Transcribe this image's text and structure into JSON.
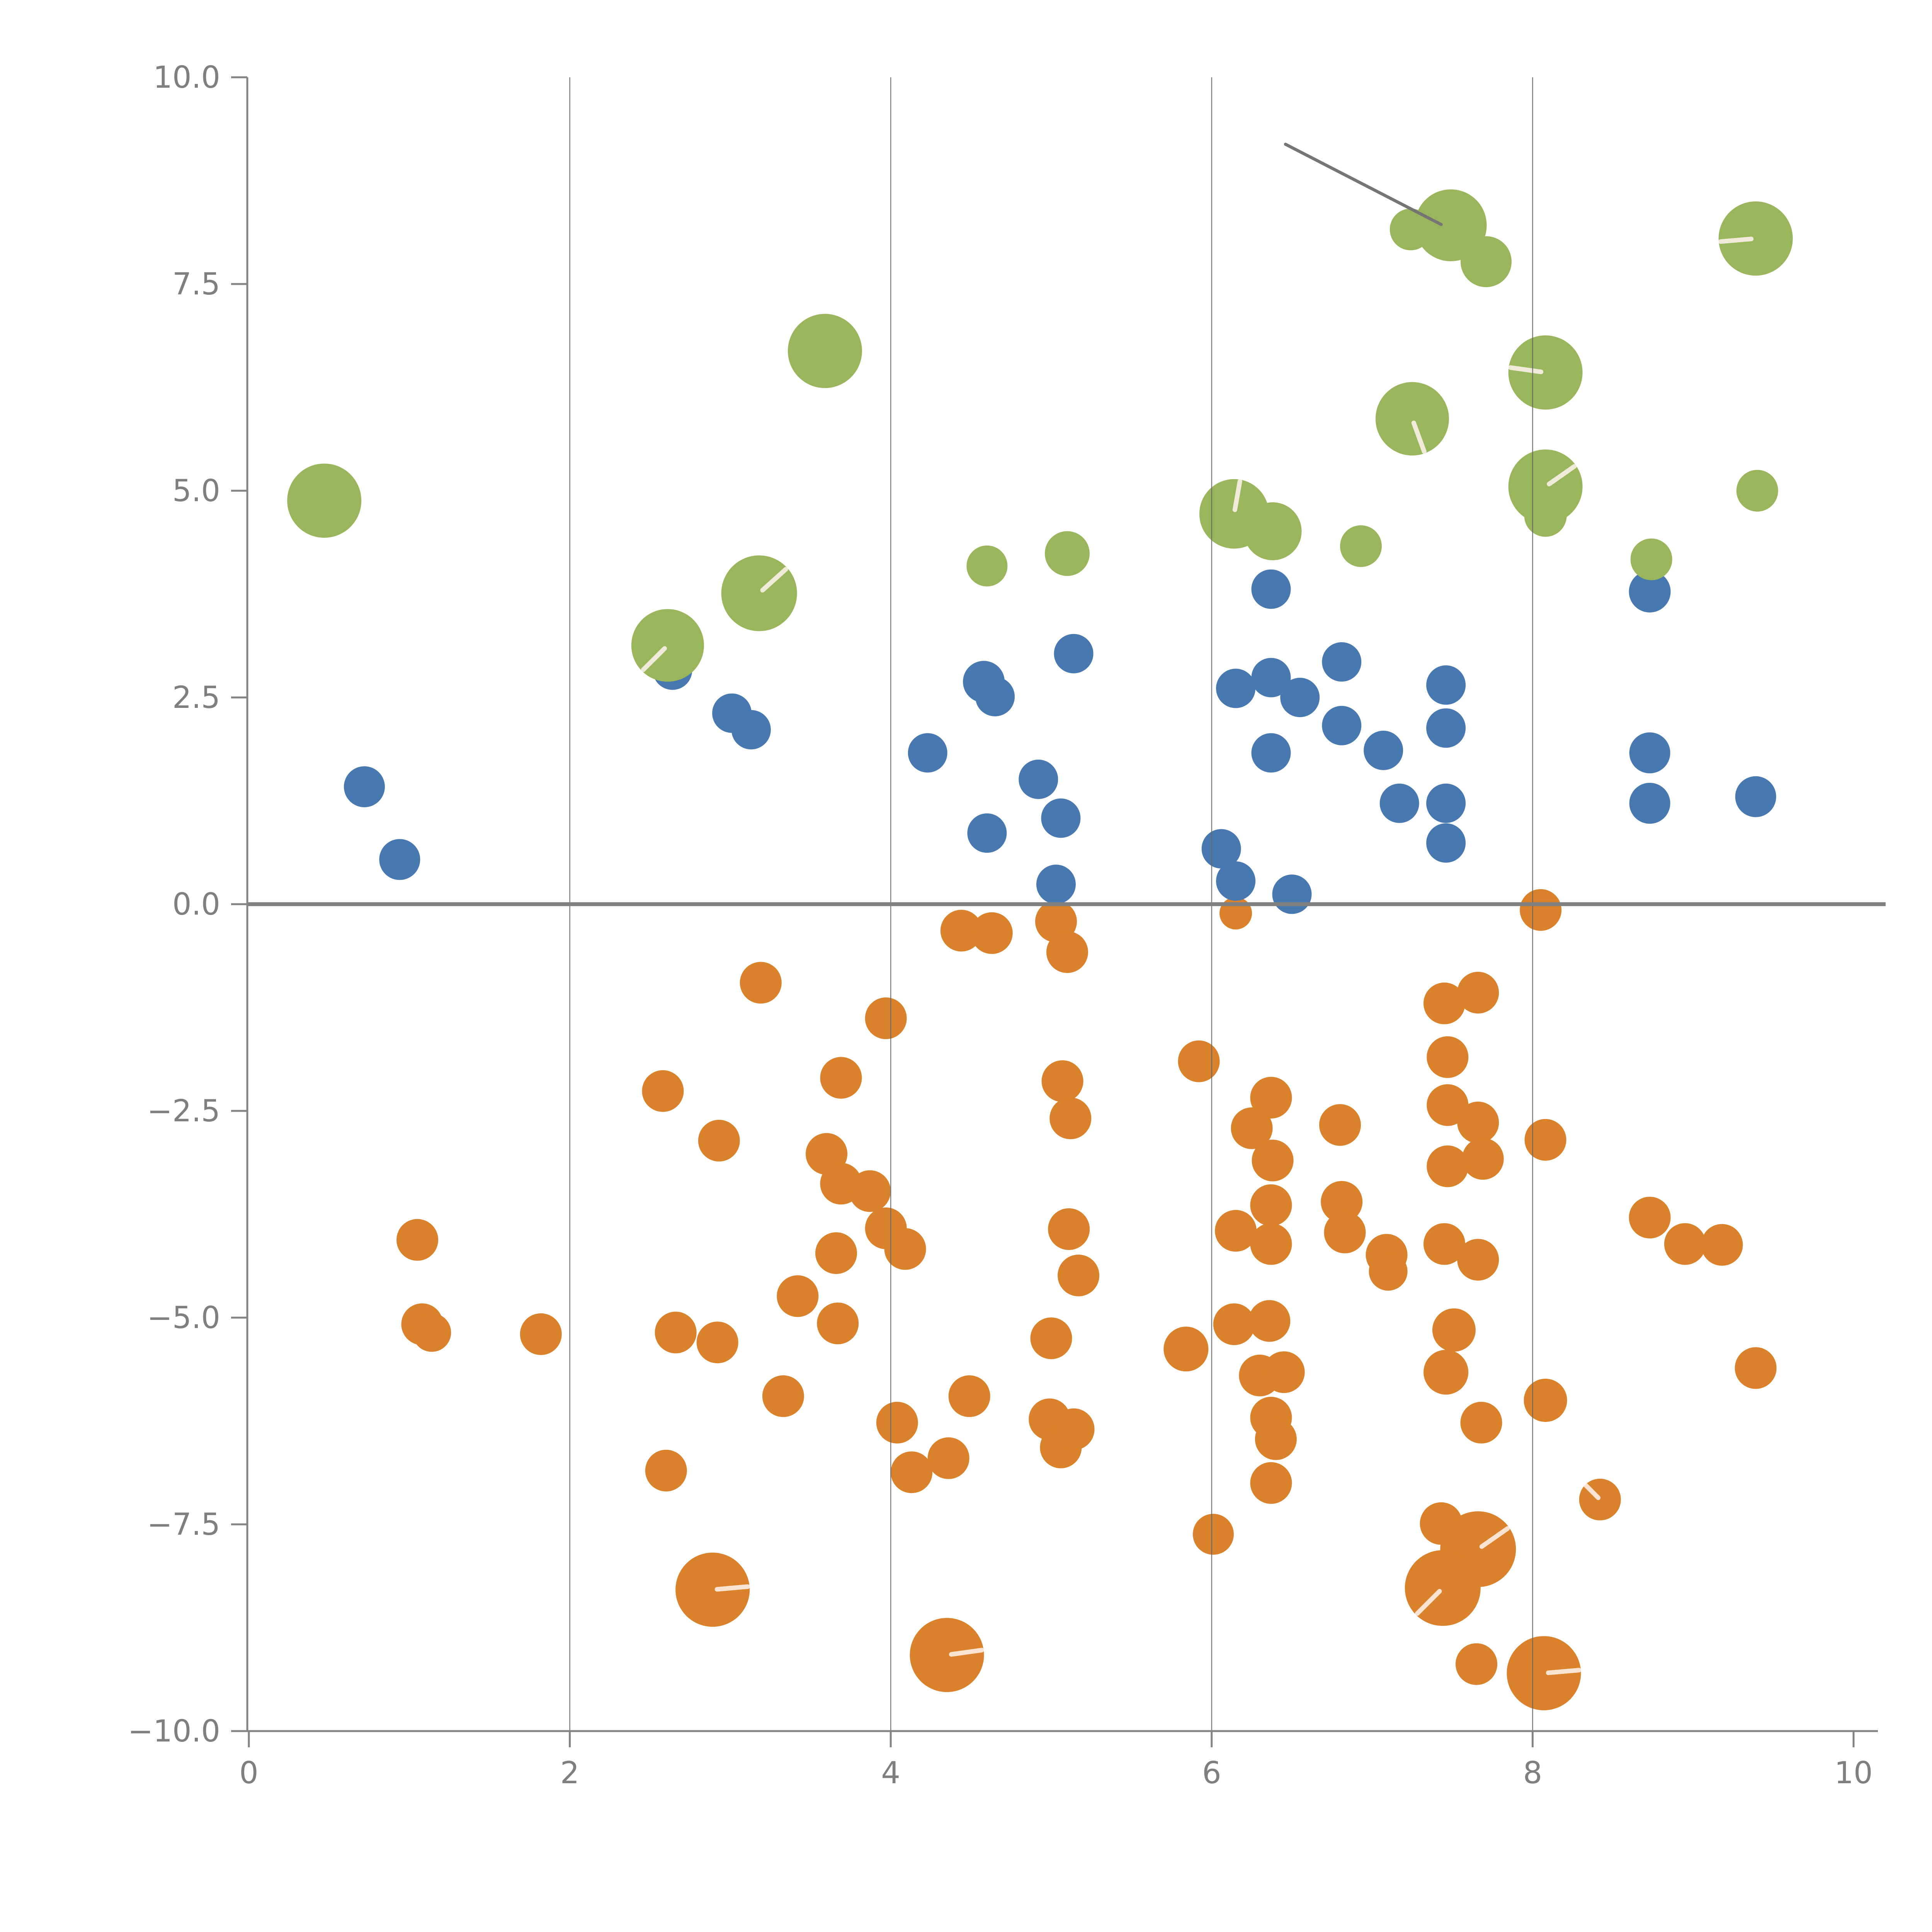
{
  "chart_data": {
    "type": "scatter",
    "subtype": "bubble",
    "title": "",
    "xlabel": "",
    "ylabel": "",
    "axes": {
      "xlim": [
        0,
        10
      ],
      "ylim": [
        -10,
        10
      ],
      "xticks": [
        {
          "v": 0,
          "label": "0"
        },
        {
          "v": 2,
          "label": "2"
        },
        {
          "v": 4,
          "label": "4"
        },
        {
          "v": 6,
          "label": "6"
        },
        {
          "v": 8,
          "label": "8"
        },
        {
          "v": 10,
          "label": "10"
        }
      ],
      "yticks": [
        {
          "v": 10,
          "label": "10.0"
        },
        {
          "v": 7.5,
          "label": "7.5"
        },
        {
          "v": 5,
          "label": "5.0"
        },
        {
          "v": 2.5,
          "label": "2.5"
        },
        {
          "v": 0,
          "label": "0.0"
        },
        {
          "v": -2.5,
          "label": "−2.5"
        },
        {
          "v": -5,
          "label": "−5.0"
        },
        {
          "v": -7.5,
          "label": "−7.5"
        },
        {
          "v": -10,
          "label": "−10.0"
        }
      ],
      "grid_x": [
        2,
        4,
        6,
        8
      ],
      "grid_y": [],
      "legend": "none"
    },
    "colors": {
      "green": "#9AB65C",
      "blue": "#4878B0",
      "orange": "#D9822B",
      "axis": "#848484",
      "tick_label": "#7F7F7F",
      "gridline": "#666666",
      "zero_line": "#808080",
      "annotation_line": "#757575",
      "bubble_slash": "rgba(255,245,238,0.85)"
    },
    "point_format": "[x, y, radius_px, optional_slash_angle_deg]",
    "series": [
      {
        "name": "orange",
        "points": [
          [
            1.05,
            -4.06,
            54
          ],
          [
            2.58,
            -2.26,
            54
          ],
          [
            3.19,
            -0.95,
            54
          ],
          [
            3.97,
            -1.38,
            54
          ],
          [
            3.69,
            -2.1,
            54
          ],
          [
            2.93,
            -2.86,
            54
          ],
          [
            3.6,
            -3.02,
            54
          ],
          [
            3.69,
            -3.38,
            54
          ],
          [
            3.87,
            -3.47,
            54
          ],
          [
            3.97,
            -3.92,
            54
          ],
          [
            4.09,
            -4.17,
            54
          ],
          [
            3.66,
            -4.22,
            54
          ],
          [
            4.44,
            -0.32,
            54
          ],
          [
            4.63,
            -0.35,
            54
          ],
          [
            5.03,
            -0.21,
            54
          ],
          [
            5.1,
            -0.58,
            54
          ],
          [
            5.07,
            -2.14,
            54
          ],
          [
            5.12,
            -2.59,
            54
          ],
          [
            5.11,
            -3.93,
            54
          ],
          [
            5.17,
            -4.49,
            54
          ],
          [
            3.42,
            -4.74,
            54
          ],
          [
            6.15,
            -0.11,
            42
          ],
          [
            5.92,
            -1.9,
            54
          ],
          [
            6.37,
            -2.34,
            54
          ],
          [
            6.25,
            -2.71,
            54
          ],
          [
            6.38,
            -3.1,
            54
          ],
          [
            6.37,
            -3.64,
            54
          ],
          [
            6.15,
            -3.95,
            54
          ],
          [
            6.37,
            -4.11,
            54
          ],
          [
            6.8,
            -2.67,
            54
          ],
          [
            6.81,
            -3.6,
            54
          ],
          [
            6.83,
            -3.97,
            54
          ],
          [
            7.09,
            -4.24,
            54
          ],
          [
            7.1,
            -4.44,
            50
          ],
          [
            7.45,
            -1.2,
            54
          ],
          [
            7.66,
            -1.07,
            54
          ],
          [
            7.47,
            -1.85,
            54
          ],
          [
            7.47,
            -2.43,
            54
          ],
          [
            7.66,
            -2.64,
            54
          ],
          [
            7.69,
            -3.08,
            54
          ],
          [
            7.47,
            -3.17,
            54
          ],
          [
            8.08,
            -2.85,
            54
          ],
          [
            8.73,
            -3.79,
            54
          ],
          [
            8.95,
            -4.11,
            54
          ],
          [
            9.18,
            -4.12,
            54
          ],
          [
            7.45,
            -4.11,
            54
          ],
          [
            7.66,
            -4.3,
            54
          ],
          [
            7.51,
            -5.15,
            56
          ],
          [
            7.46,
            -5.66,
            58
          ],
          [
            2.66,
            -5.18,
            54
          ],
          [
            2.92,
            -5.3,
            54
          ],
          [
            3.67,
            -5.07,
            54
          ],
          [
            1.08,
            -5.08,
            54
          ],
          [
            1.14,
            -5.18,
            50
          ],
          [
            1.82,
            -5.2,
            54
          ],
          [
            3.33,
            -5.95,
            54
          ],
          [
            2.6,
            -6.85,
            54
          ],
          [
            4.04,
            -6.27,
            54
          ],
          [
            4.13,
            -6.87,
            54
          ],
          [
            4.36,
            -6.7,
            54
          ],
          [
            4.49,
            -5.95,
            54
          ],
          [
            5.0,
            -5.25,
            54
          ],
          [
            4.99,
            -6.23,
            54
          ],
          [
            5.06,
            -6.57,
            54
          ],
          [
            5.14,
            -6.35,
            54
          ],
          [
            2.89,
            -8.29,
            96,
            5
          ],
          [
            4.35,
            -9.08,
            96,
            8
          ],
          [
            5.84,
            -5.38,
            58
          ],
          [
            6.14,
            -5.08,
            54
          ],
          [
            6.36,
            -5.04,
            54
          ],
          [
            6.3,
            -5.7,
            54
          ],
          [
            6.45,
            -5.66,
            54
          ],
          [
            6.37,
            -6.21,
            54
          ],
          [
            6.4,
            -6.47,
            54
          ],
          [
            6.37,
            -7.0,
            54
          ],
          [
            6.01,
            -7.62,
            53
          ],
          [
            7.68,
            -6.27,
            54
          ],
          [
            7.43,
            -7.49,
            55
          ],
          [
            7.66,
            -7.8,
            98,
            35
          ],
          [
            7.44,
            -8.27,
            98,
            225
          ],
          [
            7.65,
            -9.19,
            54
          ],
          [
            8.07,
            -9.3,
            96,
            5
          ],
          [
            8.08,
            -6.0,
            56
          ],
          [
            9.39,
            -5.61,
            54
          ],
          [
            8.42,
            -7.2,
            54,
            135
          ],
          [
            8.05,
            -0.07,
            54
          ]
        ]
      },
      {
        "name": "blue",
        "points": [
          [
            0.72,
            1.42,
            53
          ],
          [
            0.94,
            0.54,
            53
          ],
          [
            2.64,
            2.83,
            51
          ],
          [
            3.01,
            2.31,
            51
          ],
          [
            3.13,
            2.11,
            51
          ],
          [
            4.58,
            2.69,
            54
          ],
          [
            4.65,
            2.51,
            51
          ],
          [
            4.23,
            1.83,
            51
          ],
          [
            4.92,
            1.51,
            51
          ],
          [
            5.06,
            1.04,
            51
          ],
          [
            4.6,
            0.86,
            51
          ],
          [
            5.03,
            0.24,
            51
          ],
          [
            5.14,
            3.03,
            51
          ],
          [
            6.37,
            3.81,
            51
          ],
          [
            6.81,
            2.93,
            51
          ],
          [
            6.15,
            2.61,
            51
          ],
          [
            6.37,
            2.74,
            51
          ],
          [
            6.55,
            2.5,
            51
          ],
          [
            6.81,
            2.16,
            51
          ],
          [
            7.07,
            1.86,
            51
          ],
          [
            7.46,
            2.65,
            51
          ],
          [
            7.46,
            2.13,
            51
          ],
          [
            6.37,
            1.83,
            51
          ],
          [
            7.17,
            1.22,
            51
          ],
          [
            7.46,
            1.22,
            51
          ],
          [
            7.46,
            0.74,
            51
          ],
          [
            6.06,
            0.67,
            51
          ],
          [
            6.15,
            0.28,
            51
          ],
          [
            6.5,
            0.12,
            51
          ],
          [
            8.73,
            3.78,
            54
          ],
          [
            8.73,
            1.83,
            53
          ],
          [
            8.73,
            1.22,
            53
          ],
          [
            9.39,
            1.3,
            53
          ]
        ]
      },
      {
        "name": "green",
        "points": [
          [
            0.47,
            4.88,
            96
          ],
          [
            3.59,
            6.69,
            96
          ],
          [
            7.49,
            8.21,
            93
          ],
          [
            7.24,
            8.16,
            54
          ],
          [
            7.71,
            7.77,
            66
          ],
          [
            7.25,
            5.87,
            95,
            -70
          ],
          [
            9.39,
            8.05,
            96,
            185
          ],
          [
            8.08,
            6.43,
            96,
            172
          ],
          [
            8.08,
            5.05,
            96,
            35
          ],
          [
            8.08,
            4.7,
            55
          ],
          [
            9.4,
            5.0,
            54
          ],
          [
            8.74,
            4.17,
            54
          ],
          [
            3.18,
            3.76,
            98,
            42
          ],
          [
            2.61,
            3.13,
            94,
            225
          ],
          [
            4.6,
            4.09,
            53
          ],
          [
            5.1,
            4.24,
            58
          ],
          [
            6.14,
            4.72,
            90,
            80
          ],
          [
            6.38,
            4.51,
            75
          ],
          [
            6.93,
            4.33,
            54
          ]
        ]
      }
    ],
    "annotations": {
      "zero_line": {
        "y": 0
      },
      "diagonal_line": {
        "x1": 6.46,
        "y1": 9.19,
        "x2": 7.43,
        "y2": 8.22
      }
    }
  }
}
